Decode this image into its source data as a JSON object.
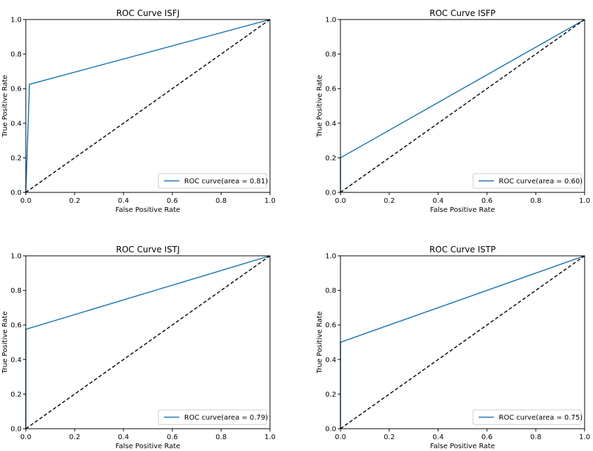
{
  "chart_data": [
    {
      "type": "line",
      "title": "ROC Curve ISFJ",
      "xlabel": "False Positive Rate",
      "ylabel": "True Positive Rate",
      "xlim": [
        0.0,
        1.0
      ],
      "ylim": [
        0.0,
        1.0
      ],
      "xticks": [
        "0.0",
        "0.2",
        "0.4",
        "0.6",
        "0.8",
        "1.0"
      ],
      "yticks": [
        "0.0",
        "0.2",
        "0.4",
        "0.6",
        "0.8",
        "1.0"
      ],
      "legend_position": "lower-right",
      "series": [
        {
          "name": "ROC curve(area = 0.81)",
          "color": "#1f77b4",
          "style": "solid",
          "x": [
            0.0,
            0.0,
            0.015,
            1.0
          ],
          "y": [
            0.0,
            0.0,
            0.625,
            1.0
          ]
        },
        {
          "color": "#000000",
          "style": "dashed",
          "x": [
            0.0,
            1.0
          ],
          "y": [
            0.0,
            1.0
          ]
        }
      ]
    },
    {
      "type": "line",
      "title": "ROC Curve ISFP",
      "xlabel": "False Positive Rate",
      "ylabel": "True Positive Rate",
      "xlim": [
        0.0,
        1.0
      ],
      "ylim": [
        0.0,
        1.0
      ],
      "xticks": [
        "0.0",
        "0.2",
        "0.4",
        "0.6",
        "0.8",
        "1.0"
      ],
      "yticks": [
        "0.0",
        "0.2",
        "0.4",
        "0.6",
        "0.8",
        "1.0"
      ],
      "legend_position": "lower-right",
      "series": [
        {
          "name": "ROC curve(area = 0.60)",
          "color": "#1f77b4",
          "style": "solid",
          "x": [
            0.0,
            0.0,
            1.0
          ],
          "y": [
            0.0,
            0.2,
            1.0
          ]
        },
        {
          "color": "#000000",
          "style": "dashed",
          "x": [
            0.0,
            1.0
          ],
          "y": [
            0.0,
            1.0
          ]
        }
      ]
    },
    {
      "type": "line",
      "title": "ROC Curve ISTJ",
      "xlabel": "False Positive Rate",
      "ylabel": "True Positive Rate",
      "xlim": [
        0.0,
        1.0
      ],
      "ylim": [
        0.0,
        1.0
      ],
      "xticks": [
        "0.0",
        "0.2",
        "0.4",
        "0.6",
        "0.8",
        "1.0"
      ],
      "yticks": [
        "0.0",
        "0.2",
        "0.4",
        "0.6",
        "0.8",
        "1.0"
      ],
      "legend_position": "lower-right",
      "series": [
        {
          "name": "ROC curve(area = 0.79)",
          "color": "#1f77b4",
          "style": "solid",
          "x": [
            0.0,
            0.0,
            1.0
          ],
          "y": [
            0.0,
            0.575,
            1.0
          ]
        },
        {
          "color": "#000000",
          "style": "dashed",
          "x": [
            0.0,
            1.0
          ],
          "y": [
            0.0,
            1.0
          ]
        }
      ]
    },
    {
      "type": "line",
      "title": "ROC Curve ISTP",
      "xlabel": "False Positive Rate",
      "ylabel": "True Positive Rate",
      "xlim": [
        0.0,
        1.0
      ],
      "ylim": [
        0.0,
        1.0
      ],
      "xticks": [
        "0.0",
        "0.2",
        "0.4",
        "0.6",
        "0.8",
        "1.0"
      ],
      "yticks": [
        "0.0",
        "0.2",
        "0.4",
        "0.6",
        "0.8",
        "1.0"
      ],
      "legend_position": "lower-right",
      "series": [
        {
          "name": "ROC curve(area = 0.75)",
          "color": "#1f77b4",
          "style": "solid",
          "x": [
            0.0,
            0.0,
            1.0
          ],
          "y": [
            0.0,
            0.5,
            1.0
          ]
        },
        {
          "color": "#000000",
          "style": "dashed",
          "x": [
            0.0,
            1.0
          ],
          "y": [
            0.0,
            1.0
          ]
        }
      ]
    }
  ]
}
